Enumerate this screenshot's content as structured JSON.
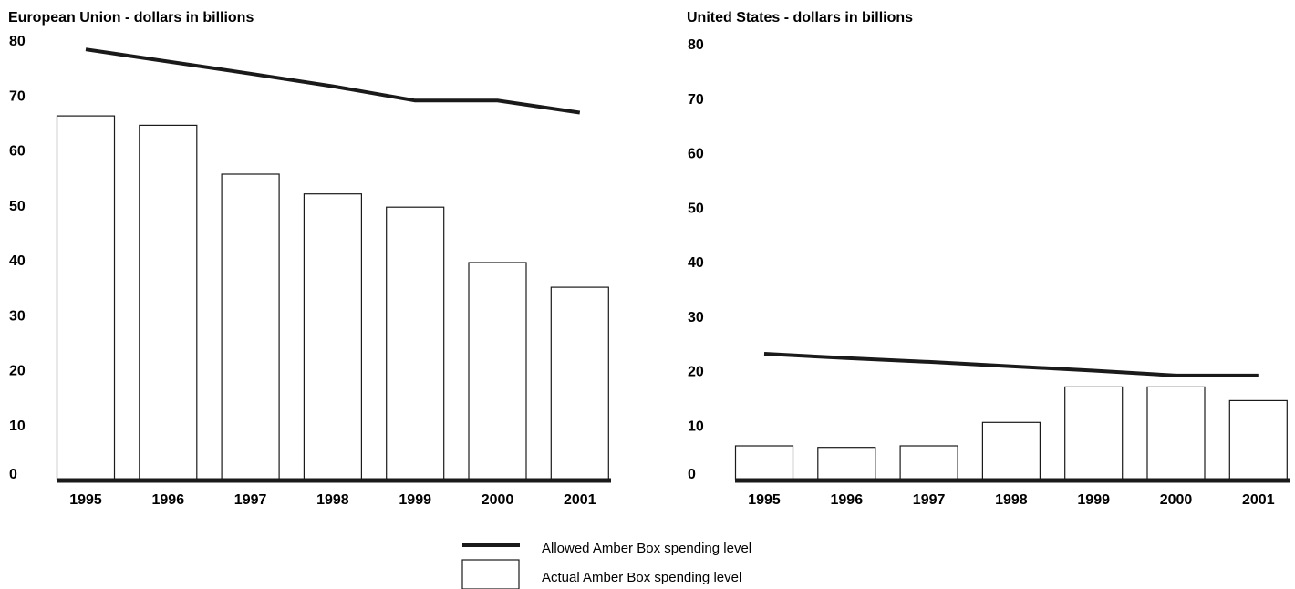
{
  "colors": {
    "line": "#1a1a1a",
    "bar_fill": "#ffffff",
    "bar_stroke": "#1a1a1a",
    "axis": "#1a1a1a",
    "text": "#000000"
  },
  "chart_data": [
    {
      "type": "bar",
      "title": "European Union - dollars in billions",
      "xlabel": "",
      "ylabel": "",
      "categories": [
        "1995",
        "1996",
        "1997",
        "1998",
        "1999",
        "2000",
        "2001"
      ],
      "yticks": [
        "0",
        "10",
        "20",
        "30",
        "40",
        "50",
        "60",
        "70",
        "80"
      ],
      "ylim": [
        0,
        80
      ],
      "grid": false,
      "series": [
        {
          "key": "allowed",
          "type": "line",
          "values": [
            78.3,
            76.1,
            73.9,
            71.6,
            69.0,
            69.0,
            66.8
          ]
        },
        {
          "key": "actual",
          "type": "bar",
          "values": [
            66.2,
            64.5,
            55.6,
            52.0,
            49.6,
            39.5,
            35.0
          ]
        }
      ]
    },
    {
      "type": "bar",
      "title": "United States - dollars in billions",
      "xlabel": "",
      "ylabel": "",
      "categories": [
        "1995",
        "1996",
        "1997",
        "1998",
        "1999",
        "2000",
        "2001"
      ],
      "yticks": [
        "0",
        "10",
        "20",
        "30",
        "40",
        "50",
        "60",
        "70",
        "80"
      ],
      "ylim": [
        0,
        80
      ],
      "grid": false,
      "series": [
        {
          "key": "allowed",
          "type": "line",
          "values": [
            23.1,
            22.3,
            21.6,
            20.8,
            20.0,
            19.1,
            19.1
          ]
        },
        {
          "key": "actual",
          "type": "bar",
          "values": [
            6.2,
            5.9,
            6.2,
            10.5,
            17.0,
            17.0,
            14.5
          ]
        }
      ]
    }
  ],
  "legend": {
    "placement": "bottom-center",
    "items": [
      {
        "symbol": "line",
        "label": "Allowed Amber Box spending level"
      },
      {
        "symbol": "box",
        "label": "Actual Amber Box spending level"
      }
    ]
  }
}
